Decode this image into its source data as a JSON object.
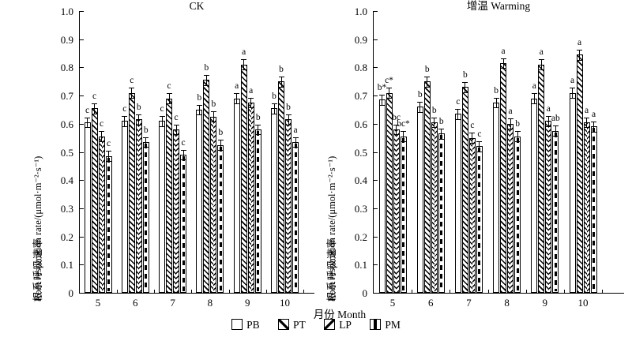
{
  "colors": {
    "ink": "#000000",
    "background": "#ffffff"
  },
  "chart_data": {
    "type": "bar",
    "xlabel": "月份 Month",
    "ylabel_cn": "根系呼吸速率",
    "ylabel_en": "Root respiration rate/(μmol·m⁻²·s⁻¹)",
    "ylim": [
      0,
      1.0
    ],
    "yticks": [
      "0",
      "0.1",
      "0.2",
      "0.3",
      "0.4",
      "0.5",
      "0.6",
      "0.7",
      "0.8",
      "0.9",
      "1.0"
    ],
    "categories": [
      "5",
      "6",
      "7",
      "8",
      "9",
      "10"
    ],
    "legend": [
      "PB",
      "PT",
      "LP",
      "PM"
    ],
    "legend_position": "bottom-center",
    "grid": false,
    "error_bar": 0.018,
    "panels": [
      {
        "title": "CK",
        "series": [
          {
            "name": "PB",
            "values": [
              0.605,
              0.61,
              0.61,
              0.65,
              0.69,
              0.655
            ],
            "letters": [
              "c",
              "c",
              "c",
              "b",
              "a",
              "b"
            ]
          },
          {
            "name": "PT",
            "values": [
              0.655,
              0.71,
              0.69,
              0.755,
              0.81,
              0.75
            ],
            "letters": [
              "c",
              "c",
              "c",
              "b",
              "a",
              "b"
            ]
          },
          {
            "name": "LP",
            "values": [
              0.555,
              0.615,
              0.58,
              0.625,
              0.675,
              0.615
            ],
            "letters": [
              "c",
              "b",
              "c",
              "b",
              "a",
              "b"
            ]
          },
          {
            "name": "PM",
            "values": [
              0.485,
              0.535,
              0.49,
              0.525,
              0.58,
              0.535
            ],
            "letters": [
              "c",
              "b",
              "c",
              "b",
              "b",
              "a"
            ]
          }
        ]
      },
      {
        "title": "增温 Warming",
        "series": [
          {
            "name": "PB",
            "values": [
              0.685,
              0.66,
              0.635,
              0.675,
              0.69,
              0.71
            ],
            "letters": [
              "b*",
              "b",
              "c",
              "b",
              "a",
              "a"
            ]
          },
          {
            "name": "PT",
            "values": [
              0.71,
              0.75,
              0.73,
              0.815,
              0.81,
              0.845
            ],
            "letters": [
              "c*",
              "b",
              "b",
              "a",
              "a",
              "a"
            ]
          },
          {
            "name": "LP",
            "values": [
              0.58,
              0.605,
              0.55,
              0.6,
              0.61,
              0.605
            ],
            "letters": [
              "bc",
              "b",
              "c",
              "a",
              "a",
              "a"
            ]
          },
          {
            "name": "PM",
            "values": [
              0.555,
              0.565,
              0.52,
              0.555,
              0.575,
              0.59
            ],
            "letters": [
              "bc*",
              "b",
              "c",
              "b",
              "ab",
              "a"
            ]
          }
        ]
      }
    ]
  }
}
